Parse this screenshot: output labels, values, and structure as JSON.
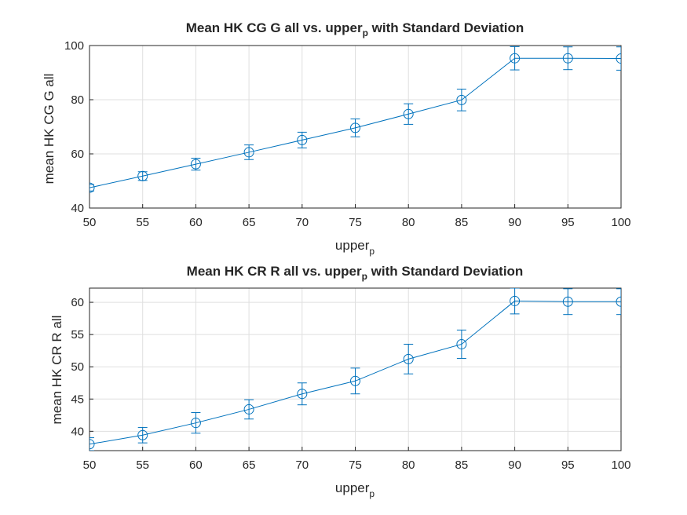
{
  "chart_data": [
    {
      "type": "line",
      "title_main": "Mean HK CG G all vs. upper",
      "title_sub": "p",
      "title_end": " with Standard Deviation",
      "xlabel_main": "upper",
      "xlabel_sub": "p",
      "ylabel": "mean HK CG G all",
      "xlim": [
        50,
        100
      ],
      "ylim": [
        40,
        100
      ],
      "x_ticks": [
        "50",
        "55",
        "60",
        "65",
        "70",
        "75",
        "80",
        "85",
        "90",
        "95",
        "100"
      ],
      "y_ticks": [
        "40",
        "60",
        "80",
        "100"
      ],
      "grid": true,
      "color": "#0072BD",
      "marker": "circle",
      "series": [
        {
          "x": [
            50,
            55,
            60,
            65,
            70,
            75,
            80,
            85,
            90,
            95,
            100
          ],
          "y": [
            47.5,
            51.8,
            56.2,
            60.6,
            65.1,
            69.6,
            74.7,
            79.9,
            95.3,
            95.3,
            95.2
          ],
          "error": [
            1.2,
            1.6,
            2.2,
            2.7,
            2.9,
            3.3,
            3.8,
            4.0,
            4.3,
            4.2,
            4.3
          ]
        }
      ]
    },
    {
      "type": "line",
      "title_main": "Mean HK CR R all vs. upper",
      "title_sub": "p",
      "title_end": " with Standard Deviation",
      "xlabel_main": "upper",
      "xlabel_sub": "p",
      "ylabel": "mean HK CR R all",
      "xlim": [
        50,
        100
      ],
      "ylim": [
        37,
        62.2
      ],
      "x_ticks": [
        "50",
        "55",
        "60",
        "65",
        "70",
        "75",
        "80",
        "85",
        "90",
        "95",
        "100"
      ],
      "y_ticks": [
        "40",
        "45",
        "50",
        "55",
        "60"
      ],
      "grid": true,
      "color": "#0072BD",
      "marker": "circle",
      "series": [
        {
          "x": [
            50,
            55,
            60,
            65,
            70,
            75,
            80,
            85,
            90,
            95,
            100
          ],
          "y": [
            38.0,
            39.4,
            41.3,
            43.4,
            45.8,
            47.8,
            51.2,
            53.5,
            60.2,
            60.1,
            60.1
          ],
          "error": [
            1.0,
            1.2,
            1.6,
            1.5,
            1.7,
            2.0,
            2.3,
            2.2,
            2.0,
            2.0,
            2.0
          ]
        }
      ]
    }
  ]
}
